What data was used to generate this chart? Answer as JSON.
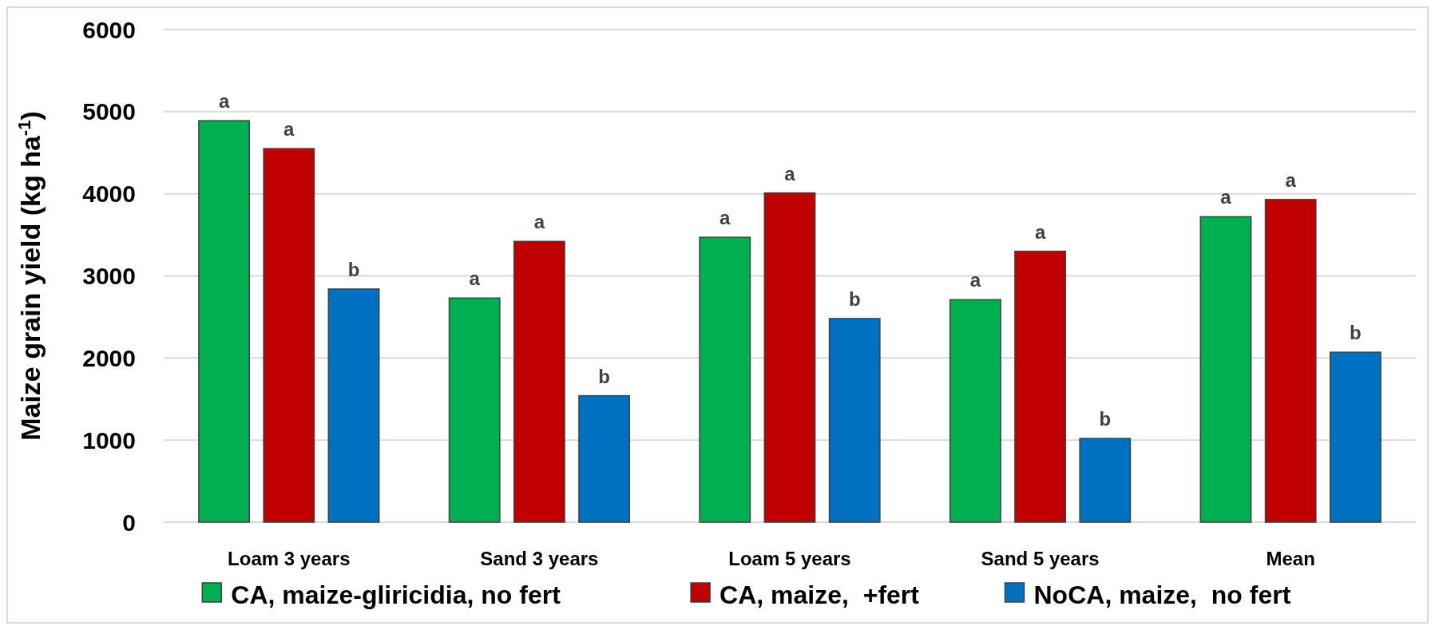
{
  "chart_data": {
    "type": "bar",
    "ylabel": "Maize grain yield (kg ha$^{-1}$)",
    "categories": [
      "Loam 3 years",
      "Sand 3 years",
      "Loam 5 years",
      "Sand 5 years",
      "Mean"
    ],
    "series": [
      {
        "name": "CA, maize-gliricidia, no fert",
        "color": "#00b050",
        "values": [
          4890,
          2730,
          3470,
          2710,
          3720
        ],
        "value_labels": [
          "a",
          "a",
          "a",
          "a",
          "a"
        ]
      },
      {
        "name": "CA, maize,  +fert",
        "color": "#c00000",
        "values": [
          4550,
          3420,
          4010,
          3300,
          3930
        ],
        "value_labels": [
          "a",
          "a",
          "a",
          "a",
          "a"
        ]
      },
      {
        "name": "NoCA, maize,  no fert",
        "color": "#0070c0",
        "values": [
          2840,
          1540,
          2480,
          1020,
          2070
        ],
        "value_labels": [
          "b",
          "b",
          "b",
          "b",
          "b"
        ]
      }
    ],
    "ylim": [
      0,
      6000
    ],
    "yticks": [
      0,
      1000,
      2000,
      3000,
      4000,
      5000,
      6000
    ],
    "grid": "y",
    "legend": "bottom"
  }
}
